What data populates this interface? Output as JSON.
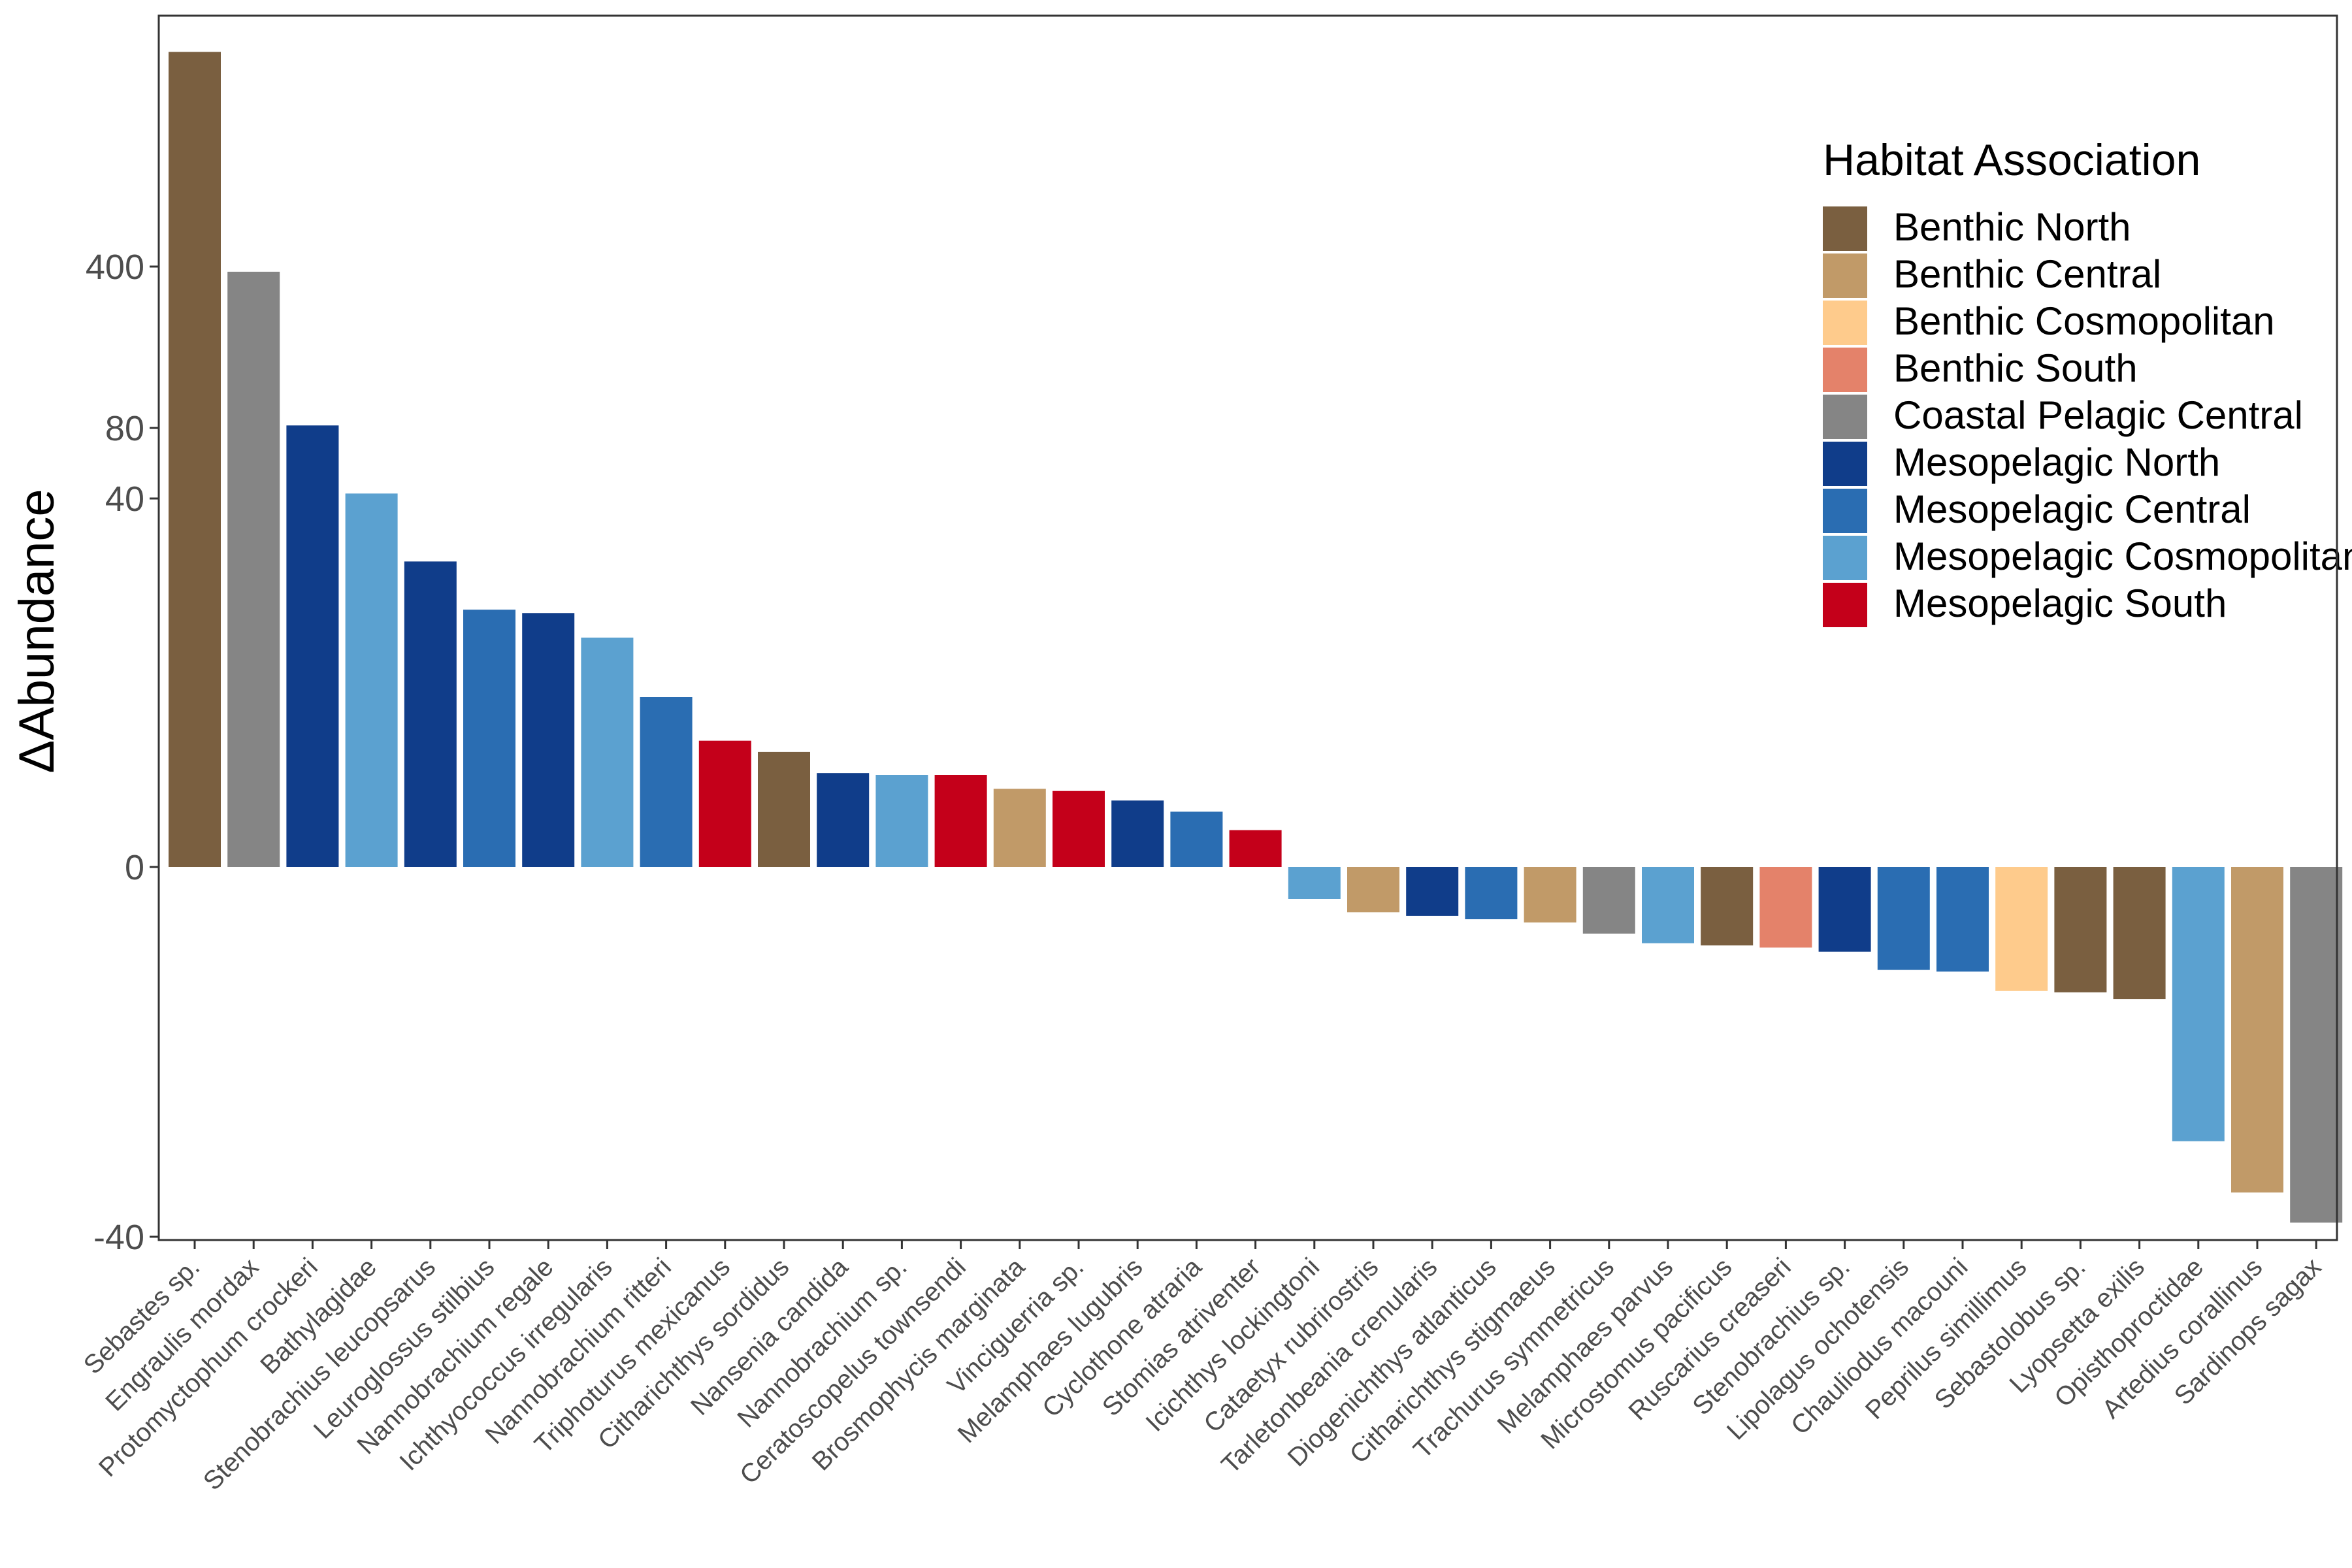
{
  "chart_data": {
    "type": "bar",
    "title": "",
    "xlabel": "",
    "ylabel": "ΔAbundance",
    "y_axis": {
      "scale": "non-linear (signed, compressed at large magnitudes)",
      "ticks": [
        400,
        80,
        40,
        0,
        -40
      ],
      "tick_labels": [
        "400",
        "80",
        "40",
        "0",
        "-40"
      ],
      "ylim": [
        -40,
        1000
      ]
    },
    "grid": false,
    "legend": {
      "title": "Habitat Association",
      "placement": "top-right",
      "entries": [
        {
          "label": "Benthic North",
          "color": "#7a5f40"
        },
        {
          "label": "Benthic Central",
          "color": "#c19a68"
        },
        {
          "label": "Benthic Cosmopolitan",
          "color": "#fecb8c"
        },
        {
          "label": "Benthic South",
          "color": "#e4826a"
        },
        {
          "label": "Coastal Pelagic Central",
          "color": "#858585"
        },
        {
          "label": "Mesopelagic North",
          "color": "#103d8a"
        },
        {
          "label": "Mesopelagic Central",
          "color": "#2a6db2"
        },
        {
          "label": "Mesopelagic Cosmopolitan",
          "color": "#5ba1d0"
        },
        {
          "label": "Mesopelagic South",
          "color": "#c4001a"
        }
      ]
    },
    "categories": [
      "Sebastes sp.",
      "Engraulis mordax",
      "Protomyctophum crockeri",
      "Bathylagidae",
      "Stenobrachius leucopsarus",
      "Leuroglossus stilbius",
      "Nannobrachium regale",
      "Ichthyococcus irregularis",
      "Nannobrachium ritteri",
      "Triphoturus mexicanus",
      "Citharichthys sordidus",
      "Nansenia candida",
      "Nannobrachium sp.",
      "Ceratoscopelus townsendi",
      "Brosmophycis marginata",
      "Vinciguerria sp.",
      "Melamphaes lugubris",
      "Cyclothone atraria",
      "Stomias atriventer",
      "Icichthys lockingtoni",
      "Cataetyx rubrirostris",
      "Tarletonbeania crenularis",
      "Diogenichthys atlanticus",
      "Citharichthys stigmaeus",
      "Trachurus symmetricus",
      "Melamphaes parvus",
      "Microstomus pacificus",
      "Ruscarius creaseri",
      "Stenobrachius sp.",
      "Lipolagus ochotensis",
      "Chauliodus macouni",
      "Peprilus simillimus",
      "Sebastolobus sp.",
      "Lyopsetta exilis",
      "Opisthoproctidae",
      "Artedius corallinus",
      "Sardinops sagax"
    ],
    "values": [
      950,
      380,
      82,
      42,
      27.5,
      19.5,
      19,
      15.5,
      8.5,
      4.7,
      3.9,
      2.6,
      2.5,
      2.5,
      1.8,
      1.7,
      1.3,
      0.9,
      0.4,
      -0.3,
      -0.6,
      -0.7,
      -0.8,
      -0.9,
      -1.3,
      -1.7,
      -1.8,
      -1.9,
      -2.1,
      -3.1,
      -3.2,
      -4.5,
      -4.6,
      -5.1,
      -22,
      -31,
      -37
    ],
    "bar_groups": [
      "Benthic North",
      "Coastal Pelagic Central",
      "Mesopelagic North",
      "Mesopelagic Cosmopolitan",
      "Mesopelagic North",
      "Mesopelagic Central",
      "Mesopelagic North",
      "Mesopelagic Cosmopolitan",
      "Mesopelagic Central",
      "Mesopelagic South",
      "Benthic North",
      "Mesopelagic North",
      "Mesopelagic Cosmopolitan",
      "Mesopelagic South",
      "Benthic Central",
      "Mesopelagic South",
      "Mesopelagic North",
      "Mesopelagic Central",
      "Mesopelagic South",
      "Mesopelagic Cosmopolitan",
      "Benthic Central",
      "Mesopelagic North",
      "Mesopelagic Central",
      "Benthic Central",
      "Coastal Pelagic Central",
      "Mesopelagic Cosmopolitan",
      "Benthic North",
      "Benthic South",
      "Mesopelagic North",
      "Mesopelagic Central",
      "Mesopelagic Central",
      "Benthic Cosmopolitan",
      "Benthic North",
      "Benthic North",
      "Mesopelagic Cosmopolitan",
      "Benthic Central",
      "Coastal Pelagic Central"
    ]
  }
}
